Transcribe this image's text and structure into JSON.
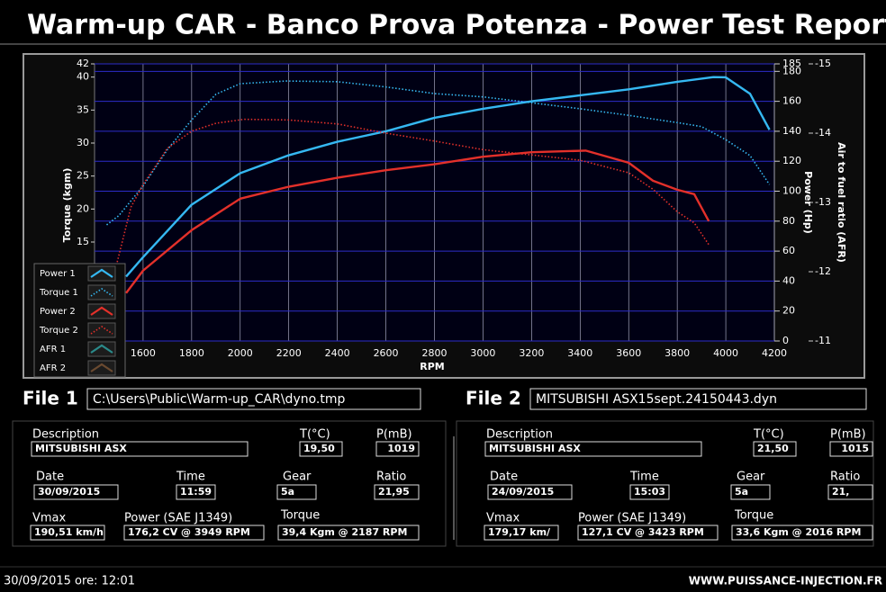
{
  "header": {
    "title": "Warm-up CAR  - Banco Prova Potenza -  Power Test Report"
  },
  "chart_data": {
    "type": "line",
    "xlabel": "RPM",
    "ylabel": "Torque (kgm)",
    "y2label": "Power (Hp)",
    "y3label": "Air to fuel ratio (AFR)",
    "xlim": [
      1400,
      4200
    ],
    "xticks": [
      1600,
      1800,
      2000,
      2200,
      2400,
      2600,
      2800,
      3000,
      3200,
      3400,
      3600,
      3800,
      4000,
      4200
    ],
    "ylim": [
      0,
      42
    ],
    "yticks": [
      15,
      20,
      25,
      30,
      35,
      40,
      42
    ],
    "y2lim": [
      0,
      185
    ],
    "y2ticks": [
      0,
      20,
      40,
      60,
      80,
      100,
      120,
      140,
      160,
      180,
      185
    ],
    "y3lim": [
      -11,
      -15
    ],
    "y3ticks": [
      -11,
      -12,
      -13,
      -14,
      -15
    ],
    "grid": true,
    "legend": "lower left",
    "series": [
      {
        "name": "Power 1",
        "color": "#35b8f2",
        "style": "solid",
        "axis": "y2",
        "x": [
          1530,
          1600,
          1800,
          2000,
          2200,
          2400,
          2600,
          2800,
          3000,
          3200,
          3400,
          3600,
          3800,
          3949,
          4000,
          4100,
          4180
        ],
        "values": [
          43,
          56,
          91,
          112,
          124,
          133,
          140,
          149,
          155,
          160,
          164,
          168,
          173,
          176.2,
          176,
          165,
          141
        ]
      },
      {
        "name": "Torque 1",
        "color": "#35b8f2",
        "style": "dotted",
        "axis": "y",
        "x": [
          1450,
          1500,
          1600,
          1700,
          1800,
          1900,
          2000,
          2187,
          2400,
          2600,
          2800,
          3000,
          3200,
          3400,
          3600,
          3800,
          3900,
          4000,
          4100,
          4180
        ],
        "values": [
          17.6,
          19,
          23.5,
          29,
          33.5,
          37.4,
          39,
          39.4,
          39.3,
          38.5,
          37.5,
          37,
          36.1,
          35.2,
          34.2,
          33.1,
          32.5,
          30.5,
          28.1,
          23.7
        ]
      },
      {
        "name": "Power 2",
        "color": "#e3302a",
        "style": "solid",
        "axis": "y2",
        "x": [
          1530,
          1600,
          1800,
          2000,
          2200,
          2400,
          2600,
          2800,
          3000,
          3200,
          3423,
          3600,
          3700,
          3800,
          3870,
          3930
        ],
        "values": [
          32,
          47,
          74,
          95,
          103,
          109,
          114,
          118,
          123,
          126,
          127.1,
          119,
          107,
          101,
          98,
          80
        ]
      },
      {
        "name": "Torque 2",
        "color": "#e3302a",
        "style": "dotted",
        "axis": "y",
        "x": [
          1480,
          1550,
          1600,
          1700,
          1800,
          1900,
          2016,
          2200,
          2400,
          2600,
          2800,
          3000,
          3200,
          3400,
          3600,
          3700,
          3800,
          3870,
          3930
        ],
        "values": [
          10,
          20.3,
          23.7,
          29.2,
          31.8,
          33,
          33.6,
          33.5,
          32.9,
          31.5,
          30.3,
          29,
          28.2,
          27.4,
          25.5,
          23,
          19.6,
          17.9,
          14.6
        ]
      },
      {
        "name": "AFR 1",
        "color": "#2a8a8a",
        "style": "solid",
        "axis": "y3",
        "x": [],
        "values": []
      },
      {
        "name": "AFR 2",
        "color": "#6a4a30",
        "style": "solid",
        "axis": "y3",
        "x": [],
        "values": []
      }
    ]
  },
  "files": [
    {
      "label": "File 1",
      "path": "C:\\Users\\Public\\Warm-up_CAR\\dyno.tmp"
    },
    {
      "label": "File 2",
      "path": "MITSUBISHI ASX15sept.24150443.dyn"
    }
  ],
  "panels": [
    {
      "fields": [
        {
          "label": "Description",
          "value": "MITSUBISHI ASX"
        },
        {
          "label": "T(°C)",
          "value": "19,50"
        },
        {
          "label": "P(mB)",
          "value": "1019"
        },
        {
          "label": "Date",
          "value": "30/09/2015"
        },
        {
          "label": "Time",
          "value": "11:59"
        },
        {
          "label": "Gear",
          "value": "5a"
        },
        {
          "label": "Ratio",
          "value": "21,95"
        },
        {
          "label": "Vmax",
          "value": "190,51 km/h"
        },
        {
          "label": "Power (SAE J1349)",
          "value": "176,2 CV  @ 3949  RPM"
        },
        {
          "label": "Torque",
          "value": "39,4 Kgm  @ 2187  RPM"
        }
      ]
    },
    {
      "fields": [
        {
          "label": "Description",
          "value": "MITSUBISHI ASX"
        },
        {
          "label": "T(°C)",
          "value": "21,50"
        },
        {
          "label": "P(mB)",
          "value": "1015"
        },
        {
          "label": "Date",
          "value": "24/09/2015"
        },
        {
          "label": "Time",
          "value": "15:03"
        },
        {
          "label": "Gear",
          "value": "5a"
        },
        {
          "label": "Ratio",
          "value": "21,"
        },
        {
          "label": "Vmax",
          "value": "179,17 km/"
        },
        {
          "label": "Power (SAE J1349)",
          "value": "127,1 CV  @ 3423  RPM"
        },
        {
          "label": "Torque",
          "value": "33,6 Kgm  @ 2016  RPM"
        }
      ]
    }
  ],
  "footer": {
    "datetime": "30/09/2015  ore: 12:01",
    "website": "WWW.PUISSANCE-INJECTION.FR"
  }
}
